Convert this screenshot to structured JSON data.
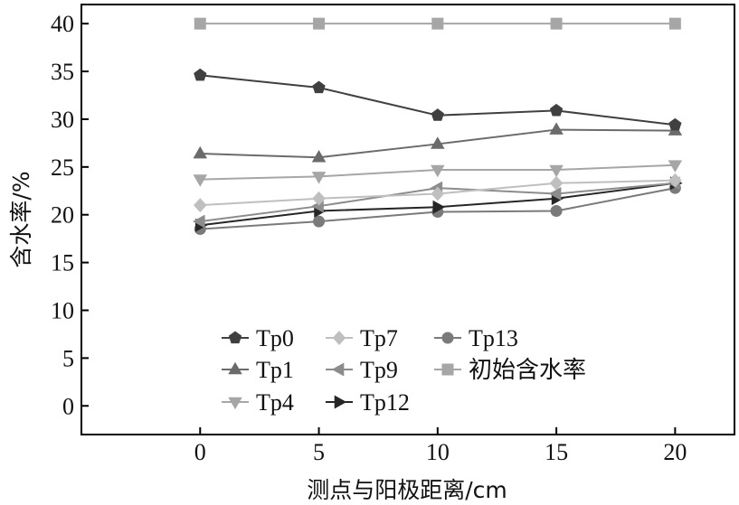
{
  "chart_data": {
    "type": "line",
    "xlabel": "测点与阳极距离/cm",
    "ylabel": "含水率/%",
    "x": [
      0,
      5,
      10,
      15,
      20
    ],
    "xlim": [
      -5,
      22.5
    ],
    "ylim": [
      -3,
      42
    ],
    "xticks": [
      0,
      5,
      10,
      15,
      20
    ],
    "yticks": [
      0,
      5,
      10,
      15,
      20,
      25,
      30,
      35,
      40
    ],
    "grid": false,
    "legend_position": "bottom-center",
    "series": [
      {
        "name": "Tp0",
        "values": [
          34.6,
          33.3,
          30.4,
          30.9,
          29.4
        ],
        "marker": "pentagon",
        "color": "#404040"
      },
      {
        "name": "Tp1",
        "values": [
          26.4,
          26.0,
          27.4,
          28.9,
          28.8
        ],
        "marker": "triangle-up",
        "color": "#6b6b6b"
      },
      {
        "name": "Tp4",
        "values": [
          23.7,
          24.0,
          24.7,
          24.7,
          25.2
        ],
        "marker": "triangle-down",
        "color": "#a6a6a6"
      },
      {
        "name": "Tp7",
        "values": [
          21.0,
          21.7,
          22.2,
          23.3,
          23.6
        ],
        "marker": "diamond",
        "color": "#bfbfbf"
      },
      {
        "name": "Tp9",
        "values": [
          19.3,
          20.9,
          22.8,
          22.2,
          23.3
        ],
        "marker": "triangle-left",
        "color": "#8c8c8c"
      },
      {
        "name": "Tp12",
        "values": [
          18.9,
          20.4,
          20.8,
          21.7,
          23.3
        ],
        "marker": "triangle-right",
        "color": "#262626"
      },
      {
        "name": "Tp13",
        "values": [
          18.5,
          19.3,
          20.3,
          20.4,
          22.8
        ],
        "marker": "circle",
        "color": "#7a7a7a"
      },
      {
        "name": "初始含水率",
        "values": [
          40,
          40,
          40,
          40,
          40
        ],
        "marker": "square",
        "color": "#a6a6a6"
      }
    ]
  }
}
